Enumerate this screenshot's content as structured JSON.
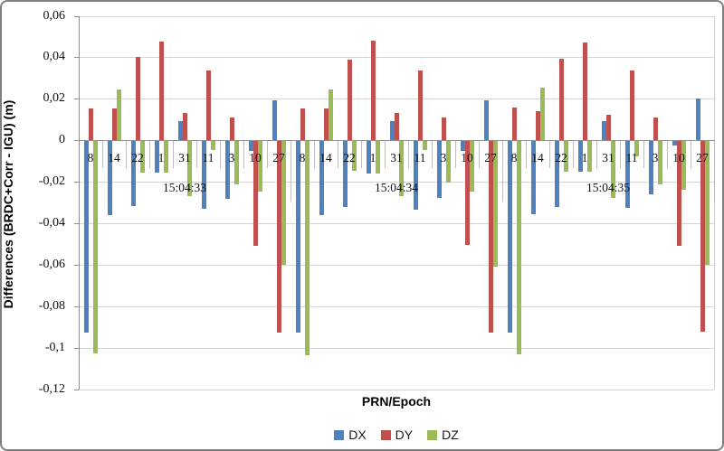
{
  "chart_data": {
    "type": "bar",
    "title": "",
    "xlabel": "PRN/Epoch",
    "ylabel": "Differences (BRDC+Corr - IGU) (m)",
    "ylim": [
      -0.12,
      0.06
    ],
    "ytick_values": [
      0.06,
      0.04,
      0.02,
      0,
      -0.02,
      -0.04,
      -0.06,
      -0.08,
      -0.1,
      -0.12
    ],
    "ytick_labels": [
      "0,06",
      "0,04",
      "0,02",
      "0",
      "-0,02",
      "-0,04",
      "-0,06",
      "-0,08",
      "-0,1",
      "-0,12"
    ],
    "grid": true,
    "legend_position": "bottom",
    "categories": [
      "8",
      "14",
      "22",
      "1",
      "31",
      "11",
      "3",
      "10",
      "27",
      "8",
      "14",
      "22",
      "1",
      "31",
      "11",
      "3",
      "10",
      "27",
      "8",
      "14",
      "22",
      "1",
      "31",
      "11",
      "3",
      "10",
      "27"
    ],
    "epoch_labels": [
      "15:04:33",
      "15:04:34",
      "15:04:35"
    ],
    "group_size": 9,
    "series": [
      {
        "name": "DX",
        "color": "#4F81BD",
        "values": [
          -0.0925,
          -0.036,
          -0.0315,
          -0.0155,
          0.0095,
          -0.033,
          -0.028,
          -0.005,
          0.0195,
          -0.0925,
          -0.036,
          -0.032,
          -0.016,
          0.0095,
          -0.0335,
          -0.0275,
          -0.005,
          0.0195,
          -0.0925,
          -0.0355,
          -0.032,
          -0.015,
          0.0095,
          -0.0325,
          -0.026,
          -0.0025,
          0.02
        ]
      },
      {
        "name": "DY",
        "color": "#C0504D",
        "values": [
          0.0155,
          0.0155,
          0.04,
          0.0475,
          0.013,
          0.0335,
          0.011,
          -0.051,
          -0.0925,
          0.0155,
          0.0155,
          0.039,
          0.048,
          0.013,
          0.0335,
          0.011,
          -0.0505,
          -0.0925,
          0.016,
          0.014,
          0.0395,
          0.047,
          0.0125,
          0.0335,
          0.011,
          -0.051,
          -0.092
        ]
      },
      {
        "name": "DZ",
        "color": "#9BBB59",
        "values": [
          -0.1025,
          0.0245,
          -0.0155,
          -0.0155,
          -0.027,
          -0.0045,
          -0.021,
          -0.0245,
          -0.06,
          -0.1035,
          0.0245,
          -0.0145,
          -0.016,
          -0.027,
          -0.0045,
          -0.0205,
          -0.0245,
          -0.061,
          -0.103,
          0.0255,
          -0.015,
          -0.015,
          -0.0275,
          -0.0075,
          -0.021,
          -0.024,
          -0.06
        ]
      }
    ]
  }
}
